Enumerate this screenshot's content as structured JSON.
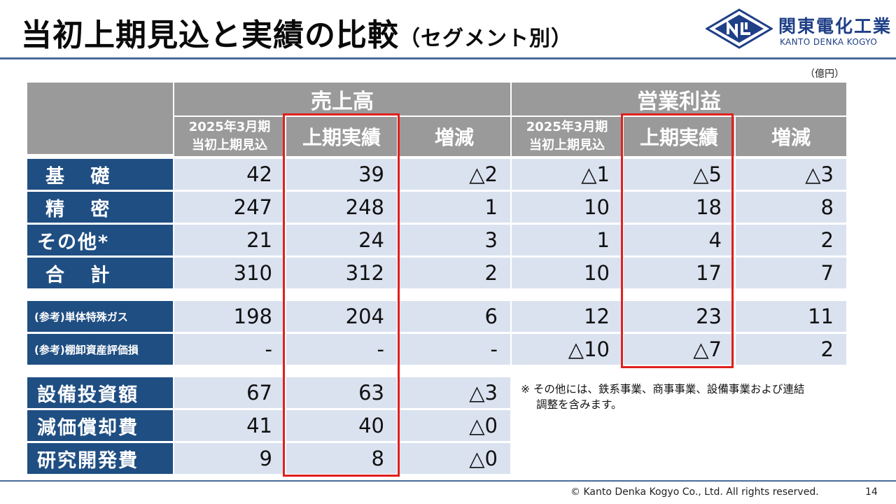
{
  "header": {
    "title": "当初上期見込と実績の比較",
    "subtitle": "（セグメント別）",
    "logo_jp": "関東電化工業",
    "logo_en": "KANTO DENKA KOGYO",
    "unit": "（億円）"
  },
  "table": {
    "groups": [
      "売上高",
      "営業利益"
    ],
    "columns": {
      "forecast_line1": "2025年3月期",
      "forecast_line2": "当初上期見込",
      "actual": "上期実績",
      "change": "増減"
    },
    "rows": [
      {
        "label": "基 礎",
        "s_fc": "42",
        "s_ac": "39",
        "s_ch": "△2",
        "p_fc": "△1",
        "p_ac": "△5",
        "p_ch": "△3"
      },
      {
        "label": "精 密",
        "s_fc": "247",
        "s_ac": "248",
        "s_ch": "1",
        "p_fc": "10",
        "p_ac": "18",
        "p_ch": "8"
      },
      {
        "label": "その他*",
        "s_fc": "21",
        "s_ac": "24",
        "s_ch": "3",
        "p_fc": "1",
        "p_ac": "4",
        "p_ch": "2"
      },
      {
        "label": "合 計",
        "s_fc": "310",
        "s_ac": "312",
        "s_ch": "2",
        "p_fc": "10",
        "p_ac": "17",
        "p_ch": "7"
      },
      {
        "label": "(参考)単体特殊ガス",
        "s_fc": "198",
        "s_ac": "204",
        "s_ch": "6",
        "p_fc": "12",
        "p_ac": "23",
        "p_ch": "11"
      },
      {
        "label": "(参考)棚卸資産評価損",
        "s_fc": "-",
        "s_ac": "-",
        "s_ch": "-",
        "p_fc": "△10",
        "p_ac": "△7",
        "p_ch": "2"
      }
    ],
    "capex_rows": [
      {
        "label": "設備投資額",
        "fc": "67",
        "ac": "63",
        "ch": "△3"
      },
      {
        "label": "減価償却費",
        "fc": "41",
        "ac": "40",
        "ch": "△0"
      },
      {
        "label": "研究開発費",
        "fc": "9",
        "ac": "8",
        "ch": "△0"
      }
    ]
  },
  "note": {
    "line1": "※ その他には、鉄系事業、商事事業、設備事業および連結",
    "line2": "調整を含みます。"
  },
  "footer": {
    "copyright": "© Kanto Denka Kogyo Co., Ltd. All rights reserved.",
    "page": "14"
  },
  "colors": {
    "header_gray": "#9a9a9a",
    "label_blue": "#1f4e82",
    "value_bg": "#dae2f0",
    "highlight_red": "#e0201d",
    "brand_blue": "#1f3f86"
  }
}
